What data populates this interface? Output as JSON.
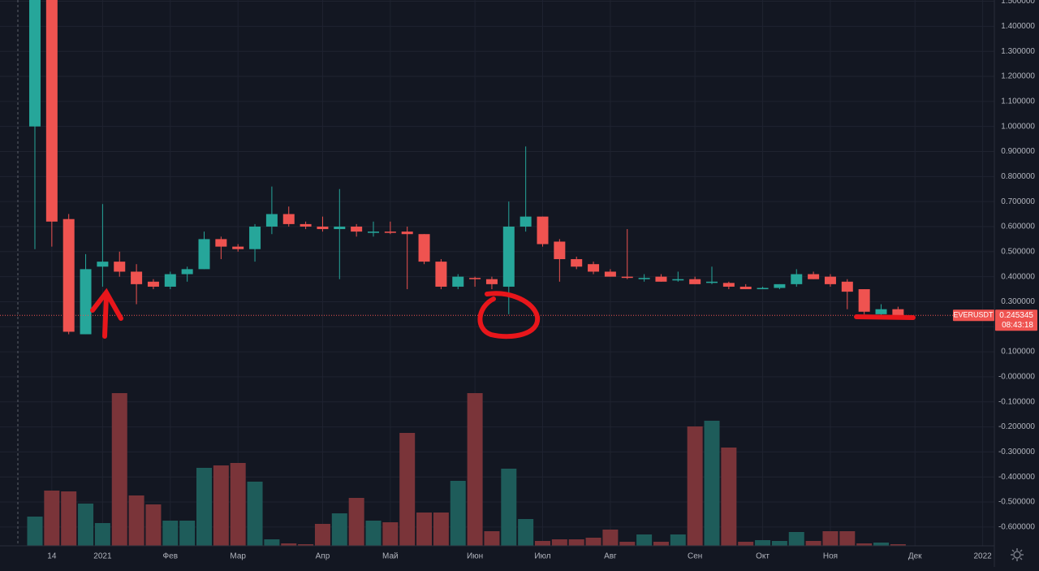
{
  "chart_data": {
    "type": "candlestick",
    "symbol": "EVERUSDT",
    "last_price": 0.245345,
    "countdown": "08:43:18",
    "open": [
      1.0,
      1.6,
      0.63,
      0.17,
      0.44,
      0.46,
      0.42,
      0.38,
      0.36,
      0.41,
      0.43,
      0.55,
      0.52,
      0.51,
      0.6,
      0.65,
      0.61,
      0.6,
      0.59,
      0.6,
      0.575,
      0.58,
      0.58,
      0.57,
      0.46,
      0.36,
      0.395,
      0.39,
      0.36,
      0.6,
      0.64,
      0.54,
      0.47,
      0.45,
      0.42,
      0.4,
      0.39,
      0.4,
      0.385,
      0.39,
      0.375,
      0.375,
      0.36,
      0.35,
      0.355,
      0.37,
      0.41,
      0.4,
      0.38,
      0.35,
      0.25,
      0.27
    ],
    "high": [
      1.6,
      1.6,
      0.65,
      0.49,
      0.69,
      0.5,
      0.45,
      0.39,
      0.42,
      0.44,
      0.58,
      0.56,
      0.53,
      0.61,
      0.76,
      0.68,
      0.62,
      0.64,
      0.75,
      0.61,
      0.62,
      0.62,
      0.6,
      0.57,
      0.47,
      0.41,
      0.4,
      0.4,
      0.7,
      0.92,
      0.64,
      0.55,
      0.48,
      0.46,
      0.43,
      0.59,
      0.41,
      0.41,
      0.42,
      0.4,
      0.44,
      0.38,
      0.37,
      0.36,
      0.37,
      0.43,
      0.42,
      0.41,
      0.39,
      0.35,
      0.29,
      0.28
    ],
    "low": [
      0.51,
      0.52,
      0.17,
      0.17,
      0.36,
      0.4,
      0.29,
      0.35,
      0.35,
      0.38,
      0.43,
      0.47,
      0.5,
      0.46,
      0.57,
      0.6,
      0.59,
      0.58,
      0.39,
      0.56,
      0.56,
      0.57,
      0.35,
      0.45,
      0.35,
      0.35,
      0.36,
      0.35,
      0.25,
      0.58,
      0.52,
      0.38,
      0.43,
      0.41,
      0.4,
      0.39,
      0.38,
      0.38,
      0.38,
      0.37,
      0.37,
      0.35,
      0.35,
      0.35,
      0.35,
      0.36,
      0.39,
      0.36,
      0.27,
      0.25,
      0.24,
      0.23
    ],
    "close": [
      1.6,
      0.62,
      0.18,
      0.43,
      0.46,
      0.42,
      0.37,
      0.36,
      0.41,
      0.43,
      0.55,
      0.52,
      0.51,
      0.6,
      0.65,
      0.61,
      0.6,
      0.59,
      0.6,
      0.58,
      0.58,
      0.575,
      0.57,
      0.46,
      0.36,
      0.4,
      0.39,
      0.37,
      0.6,
      0.64,
      0.53,
      0.47,
      0.44,
      0.42,
      0.4,
      0.395,
      0.395,
      0.38,
      0.39,
      0.37,
      0.38,
      0.36,
      0.35,
      0.355,
      0.37,
      0.41,
      0.39,
      0.37,
      0.34,
      0.26,
      0.27,
      0.245345
    ],
    "volume": [
      36,
      68,
      67,
      52,
      28,
      188,
      62,
      51,
      31,
      31,
      96,
      99,
      102,
      79,
      8,
      3,
      2,
      27,
      40,
      59,
      31,
      29,
      139,
      41,
      41,
      80,
      188,
      18,
      95,
      33,
      6,
      8,
      8,
      10,
      20,
      5,
      14,
      5,
      14,
      147,
      154,
      121,
      5,
      7,
      6,
      17,
      6,
      18,
      18,
      3,
      4,
      2
    ],
    "up_color": "#26a69a",
    "down_color": "#ef5350",
    "volume_up_color": "#1e5c5a",
    "volume_down_color": "#7a3439",
    "xlim": [
      -2.062,
      56.69
    ],
    "xticks": [
      {
        "value": 1,
        "label": "14"
      },
      {
        "value": 4,
        "label": "2021"
      },
      {
        "value": 8,
        "label": "Фев"
      },
      {
        "value": 12,
        "label": "Мар"
      },
      {
        "value": 17,
        "label": "Апр"
      },
      {
        "value": 21,
        "label": "Май"
      },
      {
        "value": 26,
        "label": "Июн"
      },
      {
        "value": 30,
        "label": "Июл"
      },
      {
        "value": 34,
        "label": "Авг"
      },
      {
        "value": 39,
        "label": "Сен"
      },
      {
        "value": 43,
        "label": "Окт"
      },
      {
        "value": 47,
        "label": "Ноя"
      },
      {
        "value": 52,
        "label": "Дек"
      },
      {
        "value": 56,
        "label": "2022"
      }
    ],
    "ylim": [
      -0.675,
      1.505
    ],
    "yticks": [
      {
        "value": 1.5,
        "label": "1.500000"
      },
      {
        "value": 1.4,
        "label": "1.400000"
      },
      {
        "value": 1.3,
        "label": "1.300000"
      },
      {
        "value": 1.2,
        "label": "1.200000"
      },
      {
        "value": 1.1,
        "label": "1.100000"
      },
      {
        "value": 1.0,
        "label": "1.000000"
      },
      {
        "value": 0.9,
        "label": "0.900000"
      },
      {
        "value": 0.8,
        "label": "0.800000"
      },
      {
        "value": 0.7,
        "label": "0.700000"
      },
      {
        "value": 0.6,
        "label": "0.600000"
      },
      {
        "value": 0.5,
        "label": "0.500000"
      },
      {
        "value": 0.4,
        "label": "0.400000"
      },
      {
        "value": 0.3,
        "label": "0.300000"
      },
      {
        "value": 0.2,
        "label": "0.200000"
      },
      {
        "value": 0.1,
        "label": "0.100000"
      },
      {
        "value": 0,
        "label": "-0.000000"
      },
      {
        "value": -0.1,
        "label": "-0.100000"
      },
      {
        "value": -0.2,
        "label": "-0.200000"
      },
      {
        "value": -0.3,
        "label": "-0.300000"
      },
      {
        "value": -0.4,
        "label": "-0.400000"
      },
      {
        "value": -0.5,
        "label": "-0.500000"
      },
      {
        "value": -0.6,
        "label": "-0.600000"
      }
    ],
    "grid": true
  }
}
